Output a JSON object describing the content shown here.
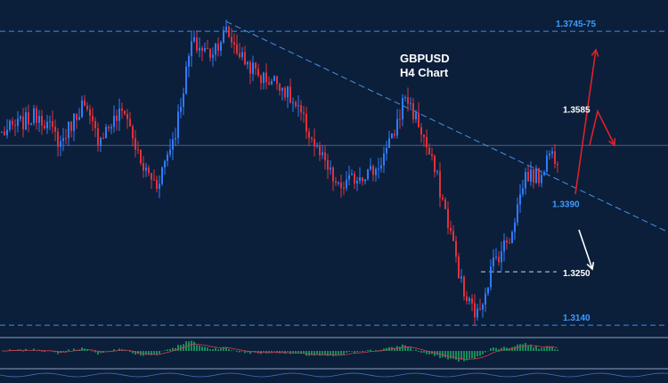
{
  "chart_data": {
    "type": "candlestick",
    "symbol": "GBPUSD",
    "timeframe": "H4 Chart",
    "y_range": [
      1.312,
      1.378
    ],
    "colors": {
      "background": "#0b1f3a",
      "bull": "#2f7bff",
      "bear": "#e0313a",
      "level_line": "#3d8fe8",
      "trendline": "#4a90e2",
      "level_text": "#3d9bff",
      "target_text": "#ffffff",
      "up_arrow": "#e0202a",
      "down_arrow": "#ffffff",
      "macd_hist": "#1fb86a"
    },
    "key_points": [
      [
        0,
        1.3535
      ],
      [
        14,
        1.3575
      ],
      [
        22,
        1.3515
      ],
      [
        30,
        1.3595
      ],
      [
        36,
        1.3525
      ],
      [
        46,
        1.3585
      ],
      [
        52,
        1.347
      ],
      [
        58,
        1.343
      ],
      [
        65,
        1.354
      ],
      [
        71,
        1.372
      ],
      [
        78,
        1.37
      ],
      [
        84,
        1.3745
      ],
      [
        90,
        1.369
      ],
      [
        97,
        1.365
      ],
      [
        104,
        1.364
      ],
      [
        112,
        1.357
      ],
      [
        118,
        1.35
      ],
      [
        126,
        1.342
      ],
      [
        134,
        1.345
      ],
      [
        140,
        1.346
      ],
      [
        146,
        1.352
      ],
      [
        151,
        1.3615
      ],
      [
        157,
        1.354
      ],
      [
        163,
        1.344
      ],
      [
        168,
        1.333
      ],
      [
        173,
        1.32
      ],
      [
        178,
        1.316
      ],
      [
        184,
        1.327
      ],
      [
        190,
        1.332
      ],
      [
        196,
        1.345
      ],
      [
        201,
        1.3445
      ],
      [
        205,
        1.3495
      ],
      [
        208,
        1.3485
      ]
    ],
    "levels": [
      {
        "value": 1.3745,
        "label": "1.3745-75",
        "style": "dashed"
      },
      {
        "value": 1.314,
        "label": "1.3140",
        "style": "dashed"
      },
      {
        "value": 1.351,
        "label": "",
        "style": "solid"
      }
    ],
    "support_stub": {
      "value": 1.325,
      "label": "1.3250"
    },
    "annotations": [
      {
        "text": "1.3585",
        "value": 1.3585
      },
      {
        "text": "1.3390",
        "value": 1.339
      }
    ],
    "trendline": {
      "from": [
        84,
        1.3765
      ],
      "to": [
        250,
        1.333
      ]
    }
  }
}
